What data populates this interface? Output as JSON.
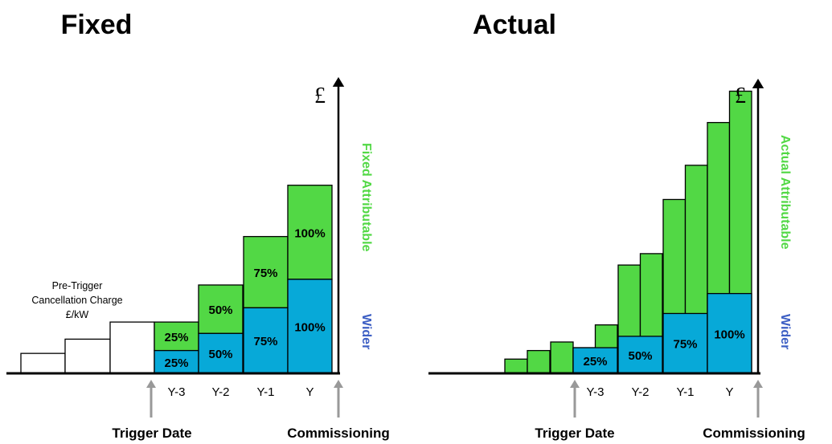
{
  "colors": {
    "attributable": "#52d845",
    "wider": "#07a9d8",
    "side_attr": "#52d845",
    "side_wider": "#3d5fc4",
    "arrow": "#999999"
  },
  "chart_data": [
    {
      "type": "bar",
      "title": "Fixed",
      "y_axis_symbol": "£",
      "side_labels": {
        "attributable": "Fixed Attributable",
        "wider": "Wider"
      },
      "note": [
        "Pre-Trigger",
        "Cancellation Charge",
        "£/kW"
      ],
      "pre_trigger_values": [
        0.07,
        0.12,
        0.18
      ],
      "categories": [
        "Y-3",
        "Y-2",
        "Y-1",
        "Y"
      ],
      "series": [
        {
          "values": [
            0.08,
            0.14,
            0.23,
            0.33
          ],
          "labels": [
            "25%",
            "50%",
            "75%",
            "100%"
          ]
        },
        {
          "values": [
            0.1,
            0.17,
            0.25,
            0.33
          ],
          "labels": [
            "25%",
            "50%",
            "75%",
            "100%"
          ]
        }
      ],
      "markers": {
        "start": "Trigger Date",
        "end": "Commissioning"
      }
    },
    {
      "type": "bar",
      "title": "Actual",
      "y_axis_symbol": "£",
      "side_labels": {
        "attributable": "Actual Attributable",
        "wider": "Wider"
      },
      "categories": [
        "Y-3",
        "Y-2",
        "Y-1",
        "Y"
      ],
      "pre_trigger_values": [
        0.05,
        0.08,
        0.11
      ],
      "wider": {
        "values": [
          0.09,
          0.13,
          0.21,
          0.28
        ],
        "labels": [
          "25%",
          "50%",
          "75%",
          "100%"
        ]
      },
      "attributable_steps": [
        [
          0.09,
          0.17
        ],
        [
          0.38,
          0.42
        ],
        [
          0.61,
          0.73
        ],
        [
          0.88,
          0.99
        ]
      ],
      "markers": {
        "start": "Trigger Date",
        "end": "Commissioning"
      }
    }
  ]
}
